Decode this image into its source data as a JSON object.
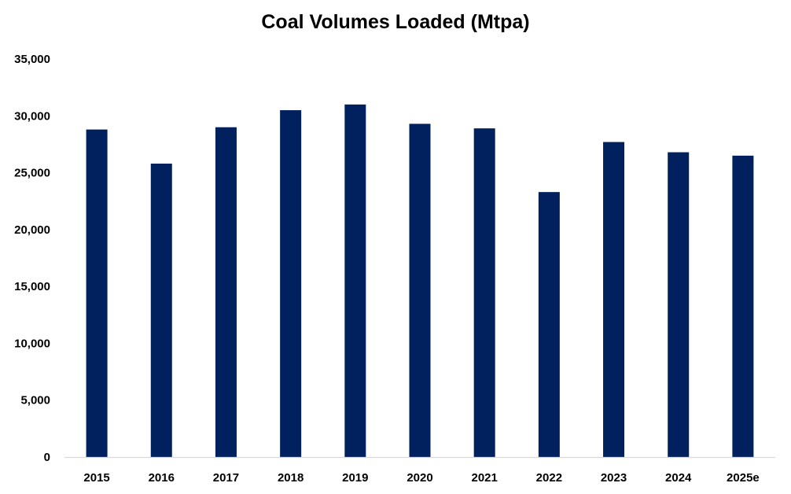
{
  "chart_data": {
    "type": "bar",
    "title": "Coal Volumes Loaded (Mtpa)",
    "categories": [
      "2015",
      "2016",
      "2017",
      "2018",
      "2019",
      "2020",
      "2021",
      "2022",
      "2023",
      "2024",
      "2025e"
    ],
    "series": [
      {
        "values": [
          28800,
          25800,
          29000,
          30500,
          31000,
          29300,
          28900,
          23300,
          27700,
          26800,
          26500
        ]
      }
    ],
    "ylim": [
      0,
      35000
    ],
    "yticks": [
      0,
      5000,
      10000,
      15000,
      20000,
      25000,
      30000,
      35000
    ],
    "ytick_labels": [
      "0",
      "5,000",
      "10,000",
      "15,000",
      "20,000",
      "25,000",
      "30,000",
      "35,000"
    ],
    "grid": false,
    "legend": "none",
    "bar_color": "#00215e",
    "axis_color": "#d9d9d9"
  }
}
